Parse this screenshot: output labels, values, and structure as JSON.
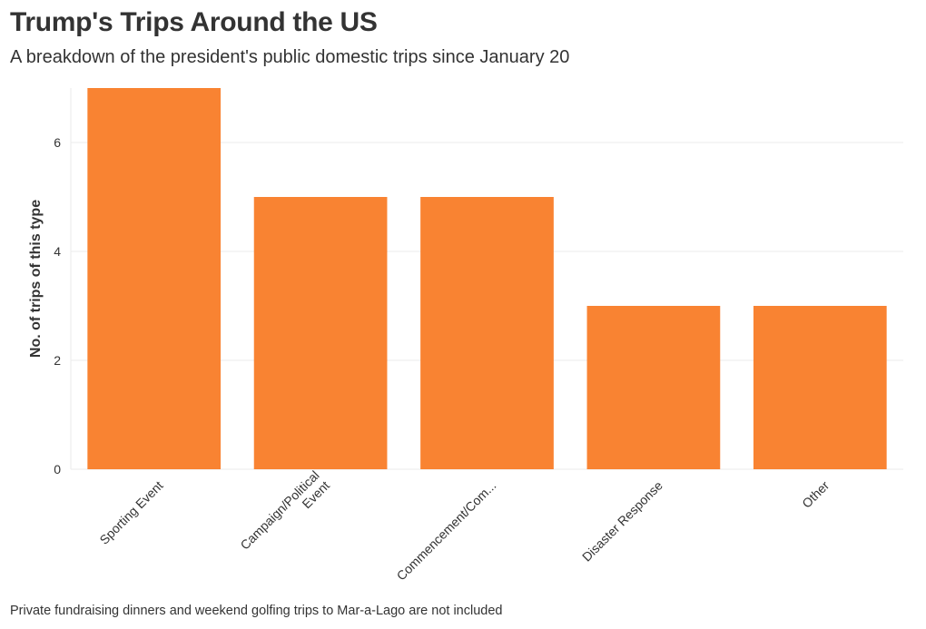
{
  "colors": {
    "bar": "#f98332",
    "grid": "#ebebeb",
    "text": "#333333"
  },
  "footnote": "Private fundraising dinners and weekend golfing trips to Mar-a-Lago are not included",
  "chart_data": {
    "type": "bar",
    "title": "Trump's Trips Around the US",
    "subtitle": "A breakdown of the president's public domestic trips since January 20",
    "xlabel": "",
    "ylabel": "No. of trips of this type",
    "categories": [
      "Sporting Event",
      "Campaign/Political Event",
      "Commencement/Com...",
      "Disaster Response",
      "Other"
    ],
    "tick_labels": [
      [
        "Sporting Event"
      ],
      [
        "Campaign/Political",
        "Event"
      ],
      [
        "Commencement/Com..."
      ],
      [
        "Disaster Response"
      ],
      [
        "Other"
      ]
    ],
    "values": [
      7,
      5,
      5,
      3,
      3
    ],
    "ylim": [
      0,
      7
    ],
    "yticks": [
      0,
      2,
      4,
      6
    ],
    "grid": true,
    "legend": "none"
  }
}
